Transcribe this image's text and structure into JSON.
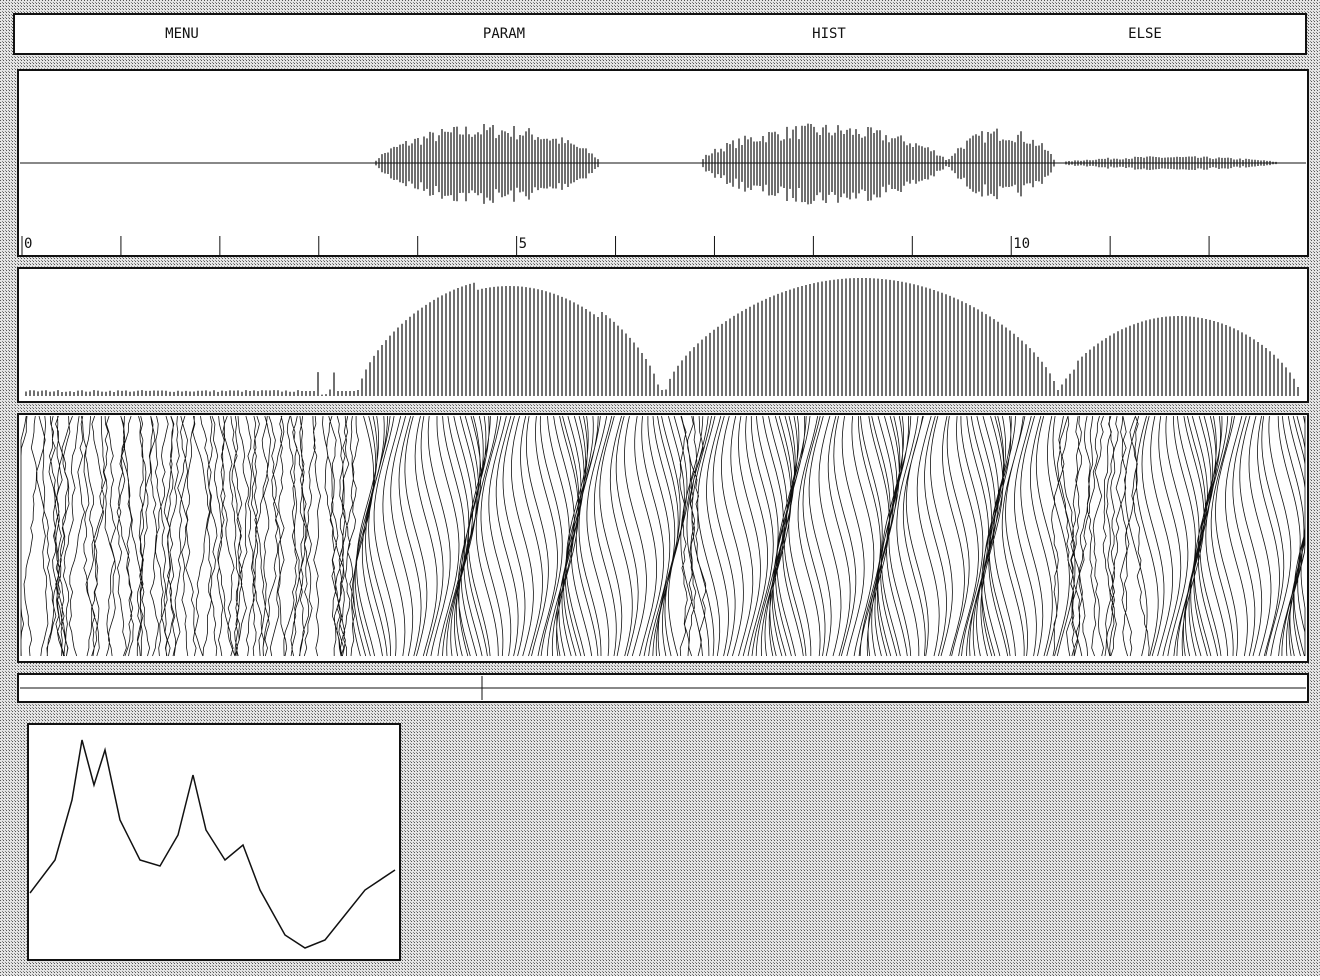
{
  "menu": {
    "items": [
      "MENU",
      "PARAM",
      "HIST",
      "ELSE"
    ]
  },
  "time_axis": {
    "xlim": [
      0,
      13
    ],
    "xticks": [
      0,
      5,
      10
    ],
    "minor_xticks": [
      1,
      2,
      3,
      4,
      6,
      7,
      8,
      9,
      11,
      12
    ]
  }
}
